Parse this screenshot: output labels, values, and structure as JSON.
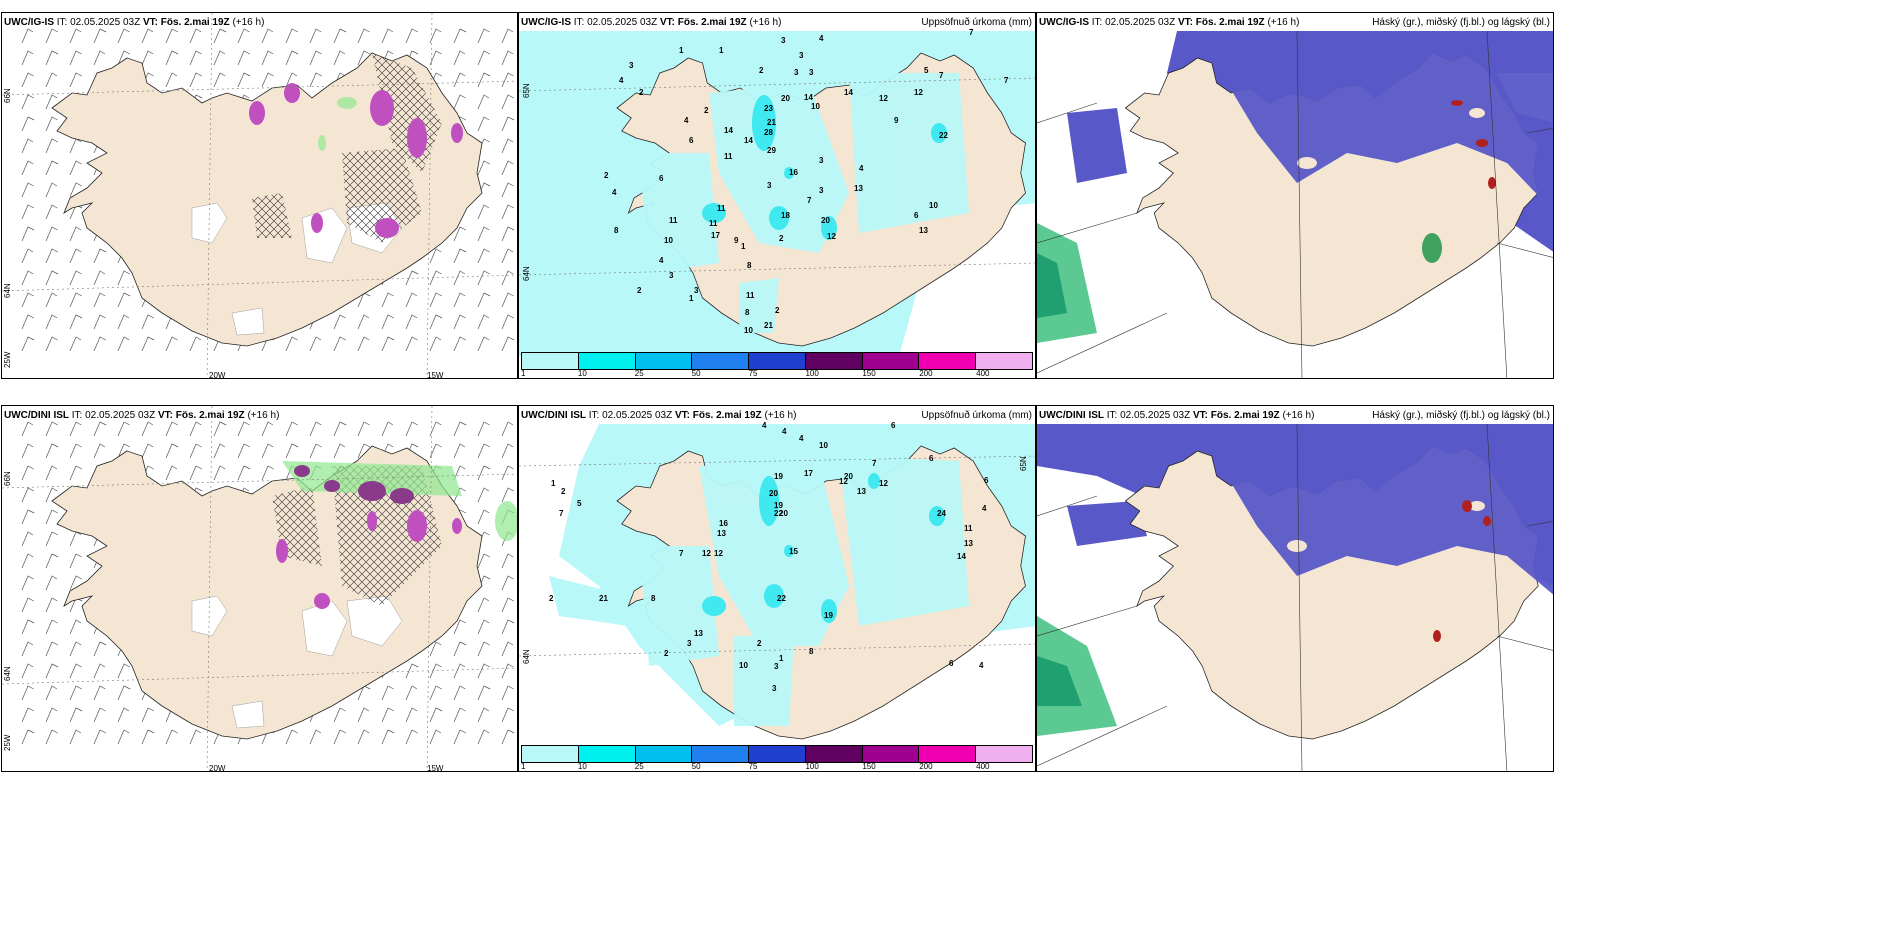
{
  "wind_panel_1": {
    "model": "UWC/IG-IS",
    "it": "IT: 02.05.2025 03Z",
    "vt": "VT: Fös. 2.mai 19Z",
    "lead": "(+16 h)",
    "lat_labels": [
      "66N",
      "64N"
    ],
    "lon_labels": [
      "25W",
      "20W",
      "15W"
    ],
    "contour_values": [
      "0.5",
      "0.5",
      "0.5",
      "0.5",
      "0.5"
    ]
  },
  "wind_panel_2": {
    "model": "UWC/DINI ISL",
    "it": "IT: 02.05.2025 03Z",
    "vt": "VT: Fös. 2.mai 19Z",
    "lead": "(+16 h)",
    "lat_labels": [
      "66N",
      "64N"
    ],
    "lon_labels": [
      "25W",
      "20W",
      "15W"
    ],
    "contour_values": [
      "0.5",
      "0.5",
      "0.5",
      "0.5",
      "0.5"
    ]
  },
  "precip_panel_1": {
    "model": "UWC/IG-IS",
    "it": "IT: 02.05.2025 03Z",
    "vt": "VT: Fös. 2.mai 19Z",
    "lead": "(+16 h)",
    "product": "Uppsöfnuð úrkoma (mm)",
    "lat_labels": [
      "65N",
      "64N"
    ],
    "values": [
      "3",
      "4",
      "1",
      "7",
      "3",
      "3",
      "3",
      "2",
      "7",
      "7",
      "5",
      "1",
      "2",
      "4",
      "4",
      "3",
      "2",
      "6",
      "23",
      "21",
      "28",
      "29",
      "20",
      "14",
      "10",
      "14",
      "12",
      "9",
      "12",
      "22",
      "6",
      "14",
      "11",
      "14",
      "16",
      "3",
      "4",
      "3",
      "7",
      "13",
      "8",
      "10",
      "11",
      "9",
      "11",
      "17",
      "18",
      "2",
      "10",
      "20",
      "12",
      "13",
      "4",
      "6",
      "3",
      "11",
      "8",
      "1",
      "3",
      "2",
      "3",
      "1",
      "11",
      "8",
      "21",
      "10",
      "2",
      "2",
      "4"
    ],
    "legend_ticks": [
      "1",
      "10",
      "25",
      "50",
      "75",
      "100",
      "150",
      "200",
      "400"
    ],
    "legend_colors": [
      "#b8f8f8",
      "#00f0f0",
      "#00c0f0",
      "#2080f0",
      "#2040d0",
      "#600060",
      "#a00090",
      "#f000b0",
      "#f0b0f0"
    ]
  },
  "precip_panel_2": {
    "model": "UWC/DINI ISL",
    "it": "IT: 02.05.2025 03Z",
    "vt": "VT: Fös. 2.mai 19Z",
    "lead": "(+16 h)",
    "product": "Uppsöfnuð úrkoma (mm)",
    "lat_labels": [
      "65N",
      "64N"
    ],
    "values": [
      "4",
      "4",
      "4",
      "6",
      "10",
      "1",
      "2",
      "19",
      "17",
      "20",
      "12",
      "7",
      "20",
      "19",
      "22",
      "15",
      "12",
      "13",
      "24",
      "11",
      "13",
      "14",
      "16",
      "13",
      "22",
      "19",
      "20",
      "6",
      "2",
      "10",
      "3",
      "21",
      "8",
      "13",
      "12",
      "7",
      "6",
      "4",
      "7",
      "5",
      "3",
      "2",
      "1",
      "8",
      "2",
      "4",
      "6",
      "3",
      "12"
    ],
    "legend_ticks": [
      "1",
      "10",
      "25",
      "50",
      "75",
      "100",
      "150",
      "200",
      "400"
    ],
    "legend_colors": [
      "#b8f8f8",
      "#00f0f0",
      "#00c0f0",
      "#2080f0",
      "#2040d0",
      "#600060",
      "#a00090",
      "#f000b0",
      "#f0b0f0"
    ]
  },
  "cloud_panel_1": {
    "model": "UWC/IG-IS",
    "it": "IT: 02.05.2025 03Z",
    "vt": "VT: Fös. 2.mai 19Z",
    "lead": "(+16 h)",
    "product": "Háský (gr.), miðský (fj.bl.) og lágský (bl.)"
  },
  "cloud_panel_2": {
    "model": "UWC/DINI ISL",
    "it": "IT: 02.05.2025 03Z",
    "vt": "VT: Fös. 2.mai 19Z",
    "lead": "(+16 h)",
    "product": "Háský (gr.), miðský (fj.bl.) og lágský (bl.)"
  },
  "colors": {
    "land": "#f5e6d3",
    "light_precip": "#b8f8f8",
    "mid_precip": "#40e8f0",
    "cloud_mid": "#5858c8",
    "snow_purple": "#c050c0",
    "green_shade": "#90e890"
  }
}
